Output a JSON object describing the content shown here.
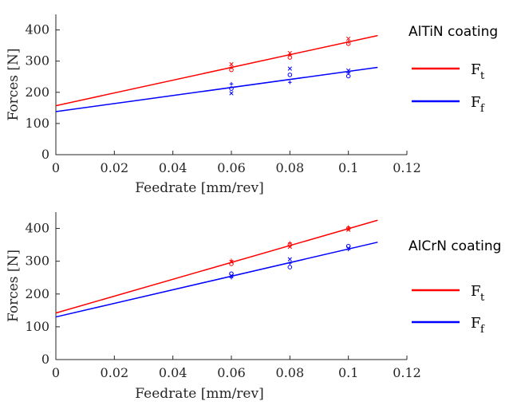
{
  "chart_data": [
    {
      "type": "scatter",
      "legend_title": "AlTiN coating",
      "xlabel": "Feedrate [mm/rev]",
      "ylabel": "Forces [N]",
      "xlim": [
        0,
        0.12
      ],
      "ylim": [
        0,
        450
      ],
      "xticks": [
        "0",
        "0.02",
        "0.04",
        "0.06",
        "0.08",
        "0.1",
        "0.12"
      ],
      "yticks": [
        "0",
        "100",
        "200",
        "300",
        "400"
      ],
      "grid": false,
      "legend_position": "right",
      "series": [
        {
          "name": "F",
          "sub": "t",
          "color": "#ff0000",
          "fit": {
            "x": [
              0,
              0.11
            ],
            "y": [
              157,
              382
            ]
          },
          "points": [
            {
              "x": 0.06,
              "y": 290,
              "m": "x"
            },
            {
              "x": 0.06,
              "y": 280,
              "m": "+"
            },
            {
              "x": 0.06,
              "y": 272,
              "m": "o"
            },
            {
              "x": 0.08,
              "y": 326,
              "m": "x"
            },
            {
              "x": 0.08,
              "y": 320,
              "m": "+"
            },
            {
              "x": 0.08,
              "y": 312,
              "m": "o"
            },
            {
              "x": 0.1,
              "y": 372,
              "m": "x"
            },
            {
              "x": 0.1,
              "y": 362,
              "m": "+"
            },
            {
              "x": 0.1,
              "y": 356,
              "m": "o"
            }
          ]
        },
        {
          "name": "F",
          "sub": "f",
          "color": "#0000ff",
          "fit": {
            "x": [
              0,
              0.11
            ],
            "y": [
              138,
              280
            ]
          },
          "points": [
            {
              "x": 0.06,
              "y": 227,
              "m": "+"
            },
            {
              "x": 0.06,
              "y": 212,
              "m": "o"
            },
            {
              "x": 0.06,
              "y": 197,
              "m": "x"
            },
            {
              "x": 0.08,
              "y": 276,
              "m": "x"
            },
            {
              "x": 0.08,
              "y": 256,
              "m": "o"
            },
            {
              "x": 0.08,
              "y": 232,
              "m": "+"
            },
            {
              "x": 0.1,
              "y": 270,
              "m": "x"
            },
            {
              "x": 0.1,
              "y": 262,
              "m": "+"
            },
            {
              "x": 0.1,
              "y": 252,
              "m": "o"
            }
          ]
        }
      ]
    },
    {
      "type": "scatter",
      "legend_title": "AlCrN coating",
      "xlabel": "Feedrate [mm/rev]",
      "ylabel": "Forces [N]",
      "xlim": [
        0,
        0.12
      ],
      "ylim": [
        0,
        450
      ],
      "xticks": [
        "0",
        "0.02",
        "0.04",
        "0.06",
        "0.08",
        "0.1",
        "0.12"
      ],
      "yticks": [
        "0",
        "100",
        "200",
        "300",
        "400"
      ],
      "grid": false,
      "legend_position": "right",
      "series": [
        {
          "name": "F",
          "sub": "t",
          "color": "#ff0000",
          "fit": {
            "x": [
              0,
              0.11
            ],
            "y": [
              142,
              425
            ]
          },
          "points": [
            {
              "x": 0.06,
              "y": 302,
              "m": "+"
            },
            {
              "x": 0.06,
              "y": 298,
              "m": "x"
            },
            {
              "x": 0.06,
              "y": 292,
              "m": "o"
            },
            {
              "x": 0.08,
              "y": 356,
              "m": "+"
            },
            {
              "x": 0.08,
              "y": 350,
              "m": "o"
            },
            {
              "x": 0.08,
              "y": 344,
              "m": "x"
            },
            {
              "x": 0.1,
              "y": 404,
              "m": "+"
            },
            {
              "x": 0.1,
              "y": 400,
              "m": "o"
            },
            {
              "x": 0.1,
              "y": 396,
              "m": "x"
            }
          ]
        },
        {
          "name": "F",
          "sub": "f",
          "color": "#0000ff",
          "fit": {
            "x": [
              0,
              0.11
            ],
            "y": [
              130,
              358
            ]
          },
          "points": [
            {
              "x": 0.06,
              "y": 262,
              "m": "o"
            },
            {
              "x": 0.06,
              "y": 256,
              "m": "x"
            },
            {
              "x": 0.06,
              "y": 250,
              "m": "+"
            },
            {
              "x": 0.08,
              "y": 306,
              "m": "x"
            },
            {
              "x": 0.08,
              "y": 294,
              "m": "+"
            },
            {
              "x": 0.08,
              "y": 282,
              "m": "o"
            },
            {
              "x": 0.1,
              "y": 346,
              "m": "o"
            },
            {
              "x": 0.1,
              "y": 340,
              "m": "x"
            },
            {
              "x": 0.1,
              "y": 336,
              "m": "+"
            }
          ]
        }
      ]
    }
  ]
}
